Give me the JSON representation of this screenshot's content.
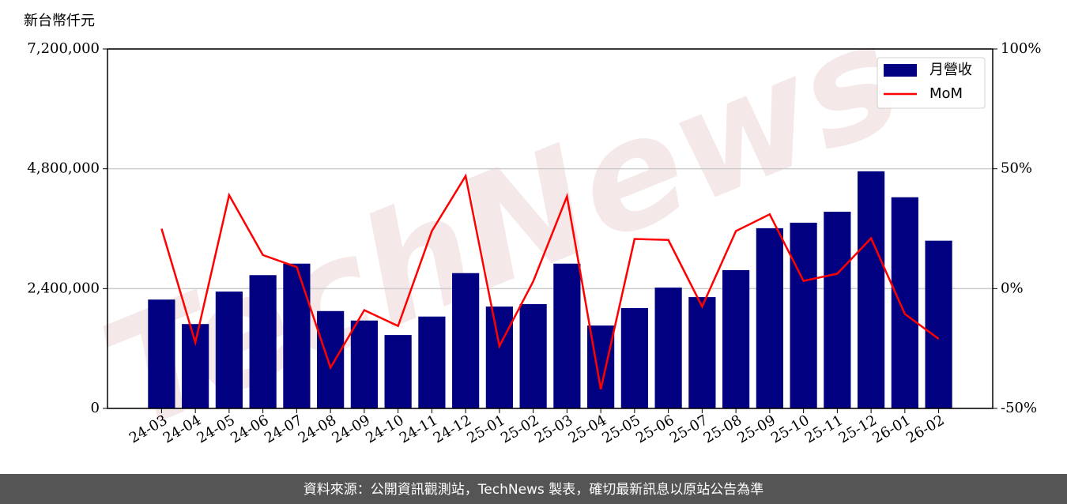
{
  "chart_data": {
    "type": "combo",
    "y_label": "新台幣仟元",
    "watermark": "TechNews",
    "footer": "資料來源：公開資訊觀測站，TechNews 製表，確切最新訊息以原站公告為準",
    "categories": [
      "24-03",
      "24-04",
      "24-05",
      "24-06",
      "24-07",
      "24-08",
      "24-09",
      "24-10",
      "24-11",
      "24-12",
      "25-01",
      "25-02",
      "25-03",
      "25-04",
      "25-05",
      "25-06",
      "25-07",
      "25-08",
      "25-09",
      "25-10",
      "25-11",
      "25-12",
      "26-01",
      "26-02"
    ],
    "series": [
      {
        "name": "月營收",
        "type": "bar",
        "color": "#000080",
        "values": [
          2180000,
          1690000,
          2340000,
          2670000,
          2900000,
          1950000,
          1760000,
          1470000,
          1840000,
          2710000,
          2040000,
          2090000,
          2900000,
          1660000,
          2010000,
          2420000,
          2230000,
          2770000,
          3610000,
          3720000,
          3940000,
          4750000,
          4230000,
          3360000
        ]
      },
      {
        "name": "MoM",
        "type": "line",
        "axis": "y2",
        "color": "#ff0000",
        "values": [
          25,
          -22.5,
          39,
          14,
          9,
          -33,
          -9,
          -15.6,
          24,
          47,
          -24,
          3,
          38.5,
          -42,
          20.7,
          20.3,
          -7.5,
          24,
          31,
          3.2,
          6.2,
          21,
          -10.6,
          -21
        ]
      }
    ],
    "ylim": [
      0,
      7200000
    ],
    "yticks": [
      0,
      {
        "value": 2400000,
        "label": "2,400,000"
      },
      {
        "value": 4800000,
        "label": "4,800,000"
      },
      {
        "value": 7200000,
        "label": "7,200,000"
      }
    ],
    "y2lim": [
      -50,
      100
    ],
    "y2ticks": [
      {
        "value": -50,
        "label": "-50%"
      },
      {
        "value": 0,
        "label": "0%"
      },
      {
        "value": 50,
        "label": "50%"
      },
      {
        "value": 100,
        "label": "100%"
      }
    ],
    "grid": true,
    "legend": "upper right"
  }
}
